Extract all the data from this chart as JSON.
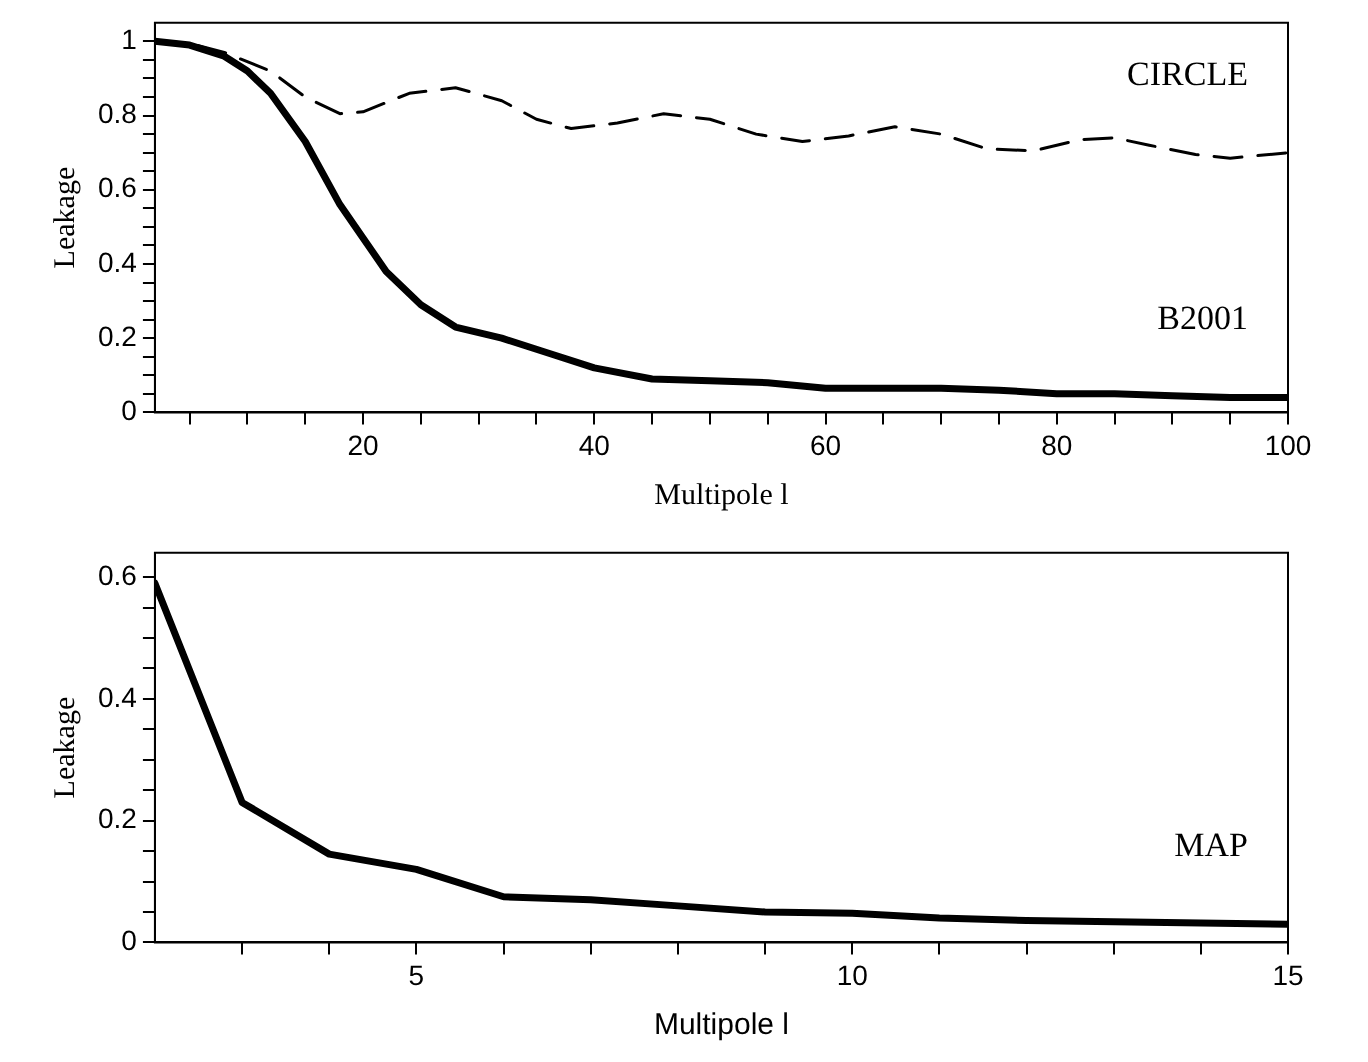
{
  "chart_data": [
    {
      "type": "line",
      "xlabel": "Multipole l",
      "ylabel": "Leakage",
      "xlim": [
        2,
        100
      ],
      "ylim": [
        0,
        1.05
      ],
      "xticks": [
        {
          "value": 5,
          "label": null
        },
        {
          "value": 10,
          "label": null
        },
        {
          "value": 15,
          "label": null
        },
        20,
        {
          "value": 25,
          "label": null
        },
        {
          "value": 30,
          "label": null
        },
        {
          "value": 35,
          "label": null
        },
        40,
        {
          "value": 45,
          "label": null
        },
        {
          "value": 50,
          "label": null
        },
        {
          "value": 55,
          "label": null
        },
        60,
        {
          "value": 65,
          "label": null
        },
        {
          "value": 70,
          "label": null
        },
        {
          "value": 75,
          "label": null
        },
        80,
        {
          "value": 85,
          "label": null
        },
        {
          "value": 90,
          "label": null
        },
        {
          "value": 95,
          "label": null
        },
        100
      ],
      "yticks": [
        0,
        {
          "value": 0.05,
          "label": null
        },
        {
          "value": 0.1,
          "label": null
        },
        {
          "value": 0.15,
          "label": null
        },
        0.2,
        {
          "value": 0.25,
          "label": null
        },
        {
          "value": 0.3,
          "label": null
        },
        {
          "value": 0.35,
          "label": null
        },
        0.4,
        {
          "value": 0.45,
          "label": null
        },
        {
          "value": 0.5,
          "label": null
        },
        {
          "value": 0.55,
          "label": null
        },
        0.6,
        {
          "value": 0.65,
          "label": null
        },
        {
          "value": 0.7,
          "label": null
        },
        {
          "value": 0.75,
          "label": null
        },
        0.8,
        {
          "value": 0.85,
          "label": null
        },
        {
          "value": 0.9,
          "label": null
        },
        {
          "value": 0.95,
          "label": null
        },
        1
      ],
      "grid": false,
      "legend": false,
      "marker": "none",
      "series": [
        {
          "name": "CIRCLE",
          "color": "#000000",
          "line_style": "dashed",
          "x": [
            2,
            5,
            8,
            12,
            15,
            18,
            20,
            24,
            28,
            32,
            35,
            38,
            42,
            46,
            50,
            54,
            58,
            62,
            66,
            70,
            74,
            78,
            82,
            85,
            88,
            92,
            95,
            100
          ],
          "values": [
            1.0,
            0.995,
            0.97,
            0.92,
            0.85,
            0.805,
            0.81,
            0.86,
            0.875,
            0.84,
            0.79,
            0.765,
            0.78,
            0.805,
            0.79,
            0.75,
            0.73,
            0.745,
            0.77,
            0.75,
            0.71,
            0.705,
            0.735,
            0.74,
            0.72,
            0.695,
            0.685,
            0.7
          ]
        },
        {
          "name": "B2001",
          "color": "#000000",
          "line_style": "solid",
          "x": [
            2,
            5,
            8,
            10,
            12,
            15,
            18,
            20,
            22,
            25,
            28,
            32,
            36,
            40,
            45,
            50,
            55,
            60,
            65,
            70,
            75,
            80,
            85,
            90,
            95,
            100
          ],
          "values": [
            1.0,
            0.99,
            0.96,
            0.92,
            0.86,
            0.73,
            0.56,
            0.47,
            0.38,
            0.29,
            0.23,
            0.2,
            0.16,
            0.12,
            0.09,
            0.085,
            0.08,
            0.065,
            0.065,
            0.065,
            0.06,
            0.05,
            0.05,
            0.045,
            0.04,
            0.04
          ]
        }
      ]
    },
    {
      "type": "line",
      "xlabel": "Multipole l",
      "ylabel": "Leakage",
      "xlim": [
        2,
        15
      ],
      "ylim": [
        0,
        0.64
      ],
      "xticks": [
        {
          "value": 3,
          "label": null
        },
        {
          "value": 4,
          "label": null
        },
        5,
        {
          "value": 6,
          "label": null
        },
        {
          "value": 7,
          "label": null
        },
        {
          "value": 8,
          "label": null
        },
        {
          "value": 9,
          "label": null
        },
        10,
        {
          "value": 11,
          "label": null
        },
        {
          "value": 12,
          "label": null
        },
        {
          "value": 13,
          "label": null
        },
        {
          "value": 14,
          "label": null
        },
        15
      ],
      "yticks": [
        0,
        {
          "value": 0.05,
          "label": null
        },
        {
          "value": 0.1,
          "label": null
        },
        {
          "value": 0.15,
          "label": null
        },
        0.2,
        {
          "value": 0.25,
          "label": null
        },
        {
          "value": 0.3,
          "label": null
        },
        {
          "value": 0.35,
          "label": null
        },
        0.4,
        {
          "value": 0.45,
          "label": null
        },
        {
          "value": 0.5,
          "label": null
        },
        {
          "value": 0.55,
          "label": null
        },
        0.6
      ],
      "grid": false,
      "legend": false,
      "marker": "none",
      "series": [
        {
          "name": "MAP",
          "color": "#000000",
          "line_style": "solid",
          "x": [
            2,
            3,
            4,
            5,
            6,
            7,
            8,
            9,
            10,
            11,
            12,
            13,
            14,
            15
          ],
          "values": [
            0.59,
            0.23,
            0.145,
            0.12,
            0.075,
            0.07,
            0.06,
            0.05,
            0.048,
            0.04,
            0.036,
            0.034,
            0.032,
            0.03
          ]
        }
      ]
    }
  ]
}
